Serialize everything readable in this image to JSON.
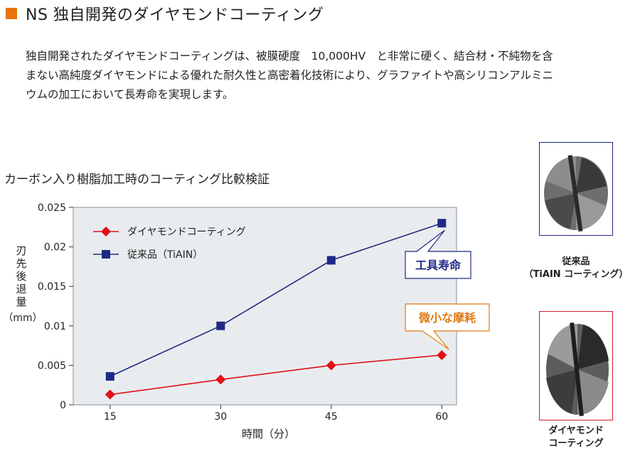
{
  "header": {
    "title": "NS 独自開発のダイヤモンドコーティング",
    "accent_color": "#e8720c"
  },
  "intro": {
    "lines": [
      "独自開発されたダイヤモンドコーティングは、被膜硬度　10,000HV　と非常に硬く、結合材・不純物を含",
      "まない高純度ダイヤモンドによる優れた耐久性と高密着化技術により、グラファイトや高シリコンアルミニ",
      "ウムの加工において長寿命を実現します。"
    ]
  },
  "chart_data": {
    "type": "line",
    "title": "カーボン入り樹脂加工時のコーティング比較検証",
    "xlabel": "時間（分）",
    "ylabel": [
      "刃",
      "先",
      "後",
      "退",
      "量",
      "（mm）"
    ],
    "x": [
      15,
      30,
      45,
      60
    ],
    "xlim": [
      10,
      62
    ],
    "ylim": [
      0,
      0.025
    ],
    "yticks": [
      "0",
      "0.005",
      "0.01",
      "0.015",
      "0.02",
      "0.025"
    ],
    "xticks": [
      "15",
      "30",
      "45",
      "60"
    ],
    "grid": false,
    "legend_position": "top-left",
    "series": [
      {
        "name": "ダイヤモンドコーティング",
        "values": [
          0.0013,
          0.0032,
          0.005,
          0.0063
        ],
        "color": "#e0101a",
        "marker": "diamond"
      },
      {
        "name": "従来品（TiAIN）",
        "values": [
          0.0036,
          0.01,
          0.0183,
          0.023
        ],
        "color": "#1f2a86",
        "marker": "square"
      }
    ],
    "annotations": [
      {
        "text": "工具寿命",
        "color": "#1f2a86",
        "border": "#1f2a86",
        "series": 1,
        "point": 3
      },
      {
        "text": "微小な摩耗",
        "color": "#e07a14",
        "border": "#e07a14",
        "series": 0,
        "point": 3
      }
    ],
    "plot_background": "#e9ecee"
  },
  "photos": [
    {
      "caption": [
        "従来品",
        "（TiAIN コーティング）"
      ],
      "border_color": "#1f2a86"
    },
    {
      "caption": [
        "ダイヤモンド",
        "コーティング"
      ],
      "border_color": "#d0202a"
    }
  ]
}
